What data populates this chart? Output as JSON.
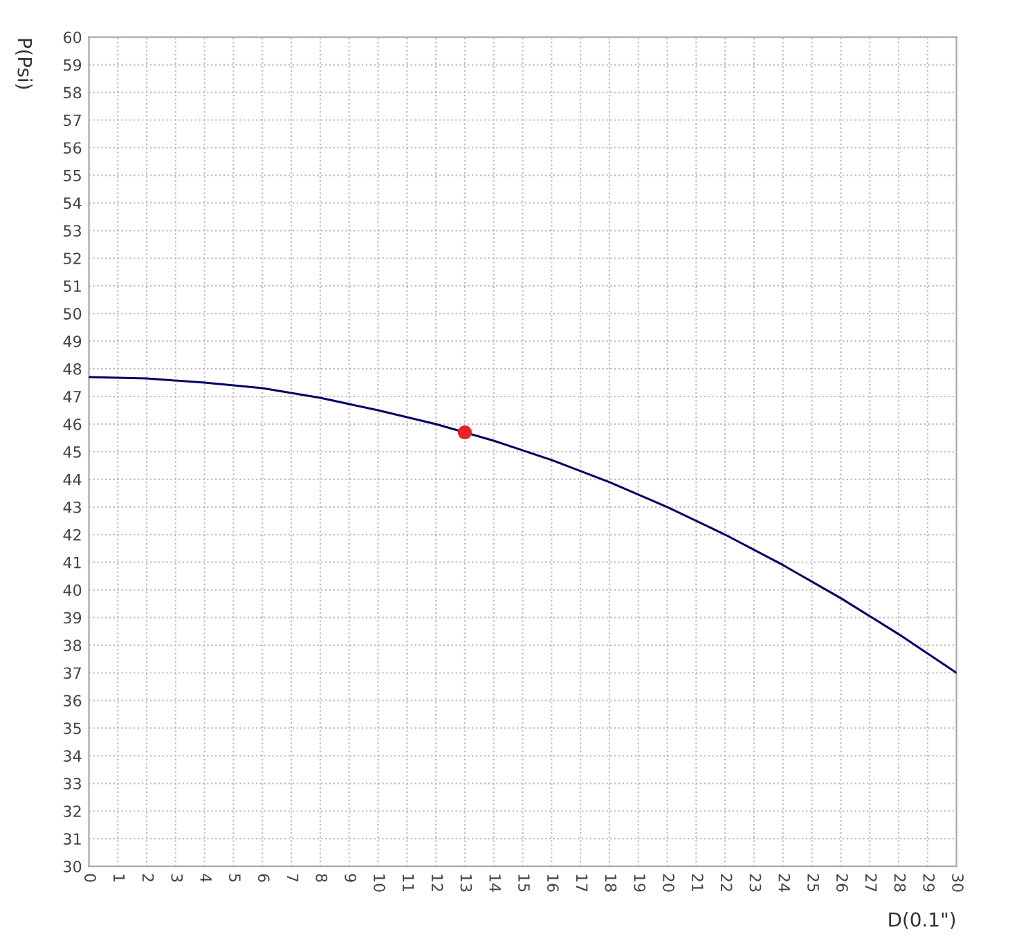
{
  "chart_data": {
    "type": "line",
    "xlabel": "D(0.1\")",
    "ylabel": "P(Psi)",
    "series": [
      {
        "color": "#000066",
        "x": [
          0,
          2,
          4,
          6,
          8,
          10,
          12,
          13,
          14,
          16,
          18,
          20,
          22,
          24,
          26,
          28,
          30
        ],
        "values": [
          47.7,
          47.65,
          47.5,
          47.3,
          46.95,
          46.5,
          46.0,
          45.7,
          45.4,
          44.7,
          43.9,
          43.0,
          42.0,
          40.9,
          39.7,
          38.4,
          37.0
        ]
      },
      {
        "type": "scatter",
        "color": "#e8212a",
        "x": [
          13
        ],
        "values": [
          45.7
        ]
      }
    ],
    "xlim": [
      0,
      30
    ],
    "ylim": [
      30,
      60
    ],
    "xticks": [
      0,
      1,
      2,
      3,
      4,
      5,
      6,
      7,
      8,
      9,
      10,
      11,
      12,
      13,
      14,
      15,
      16,
      17,
      18,
      19,
      20,
      21,
      22,
      23,
      24,
      25,
      26,
      27,
      28,
      29,
      30
    ],
    "yticks": [
      30,
      31,
      32,
      33,
      34,
      35,
      36,
      37,
      38,
      39,
      40,
      41,
      42,
      43,
      44,
      45,
      46,
      47,
      48,
      49,
      50,
      51,
      52,
      53,
      54,
      55,
      56,
      57,
      58,
      59,
      60
    ],
    "grid": true,
    "legend": false
  }
}
